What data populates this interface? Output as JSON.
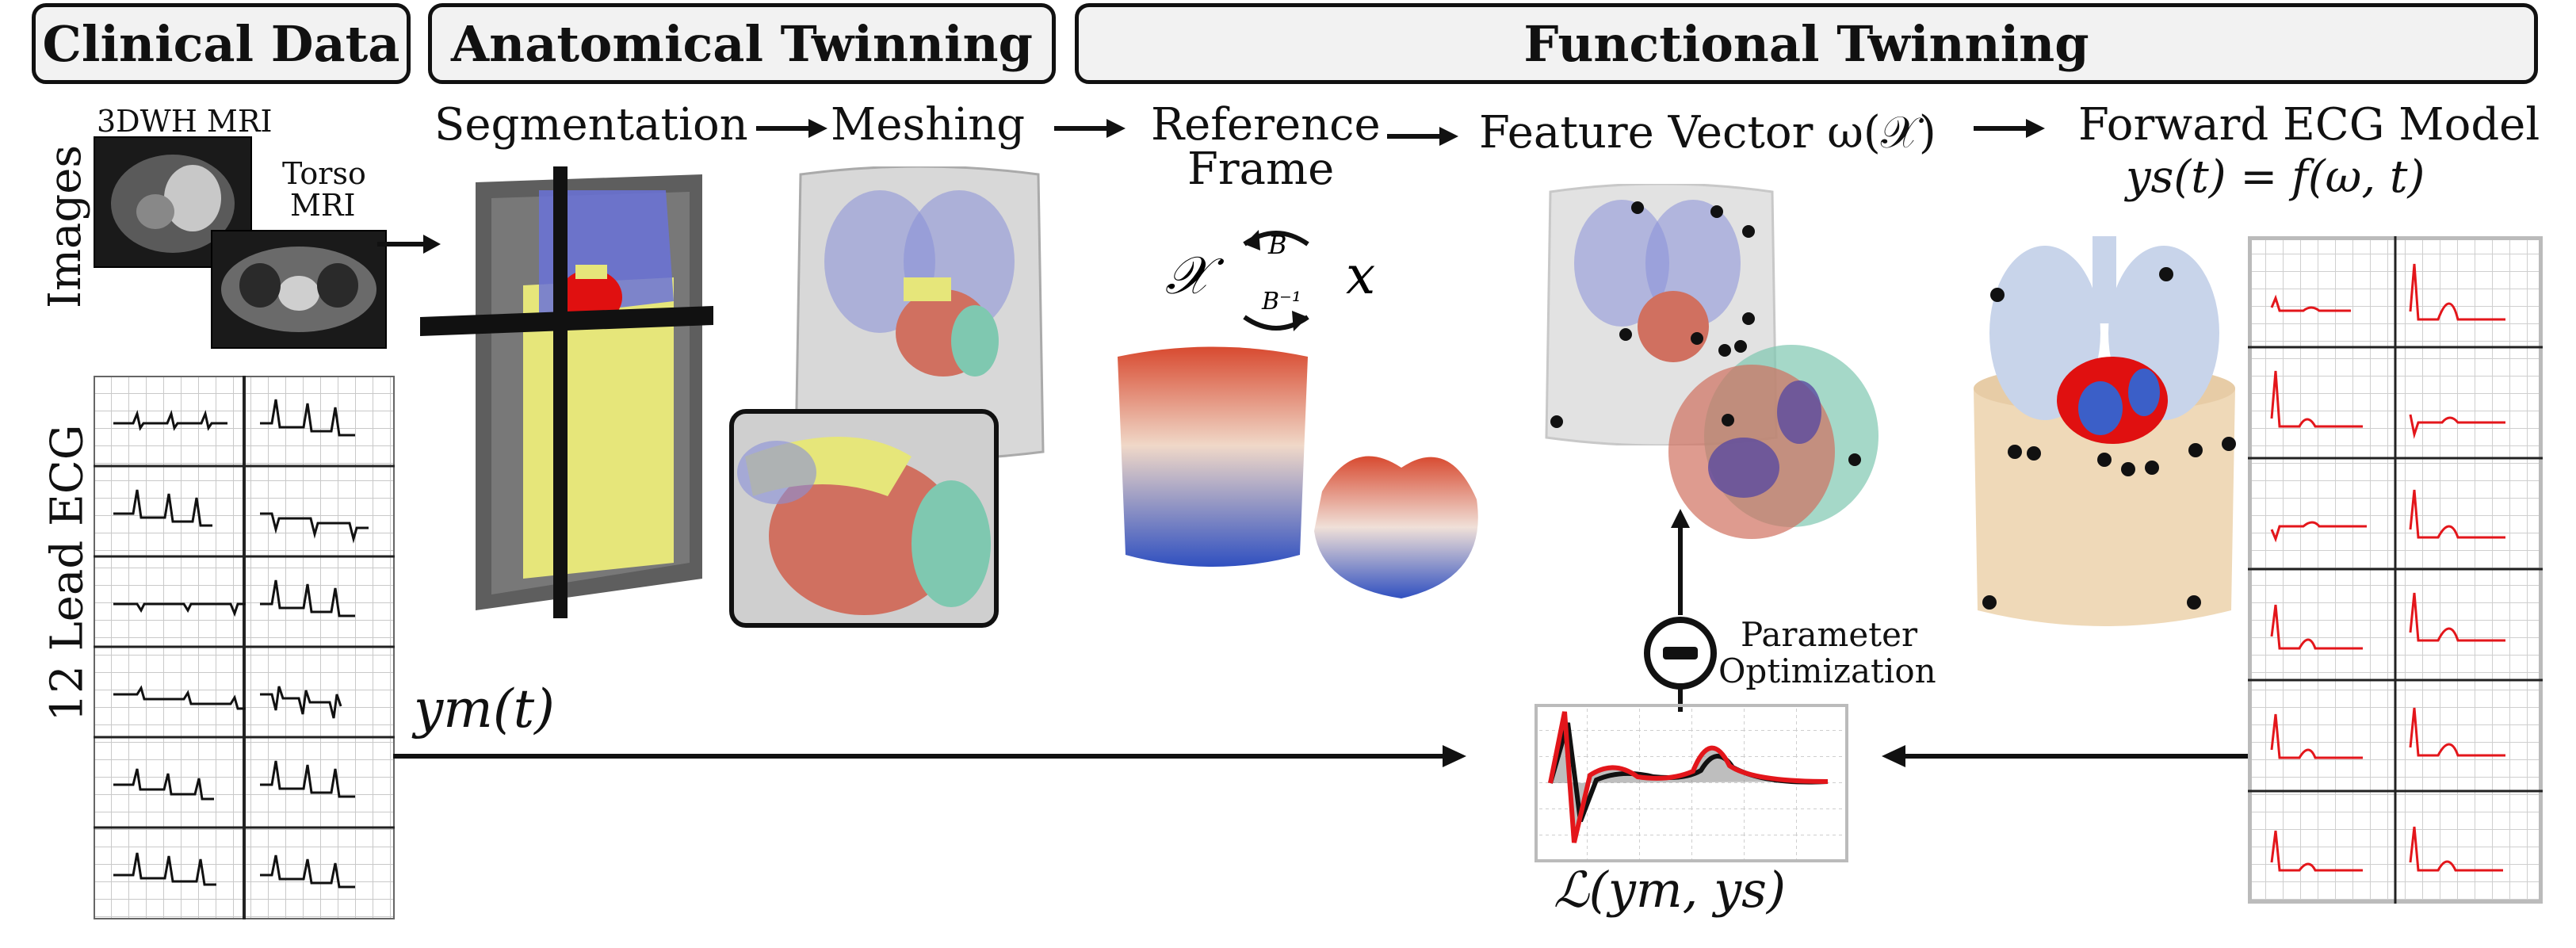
{
  "sections": {
    "clinical": "Clinical Data",
    "anatomical": "Anatomical Twinning",
    "functional": "Functional Twinning"
  },
  "labels": {
    "images": "Images",
    "mri_3dwh": "3DWH MRI",
    "torso_mri_1": "Torso",
    "torso_mri_2": "MRI",
    "ecg_12lead": "12 Lead ECG",
    "segmentation": "Segmentation",
    "meshing": "Meshing",
    "reference_frame_1": "Reference",
    "reference_frame_2": "Frame",
    "feature_vector": "Feature Vector ω(𝒳)",
    "forward_model": "Forward ECG Model",
    "forward_eq": "ys(t) = f(ω, t)",
    "param_opt_1": "Parameter",
    "param_opt_2": "Optimization",
    "ym": "ym(t)",
    "loss": "ℒ(ym, ys)",
    "b": "B",
    "b_inv": "B⁻¹",
    "x_cal": "𝒳",
    "x": "x"
  },
  "colors": {
    "ecg_measured": "#111111",
    "ecg_simulated": "#e3161b",
    "heart_red": "#e01010",
    "torso_blue": "#3b5fc8",
    "lung_blue": "#8890d8",
    "heart_green": "#7fc8b0",
    "segmentation_yellow": "#e8e86a"
  }
}
